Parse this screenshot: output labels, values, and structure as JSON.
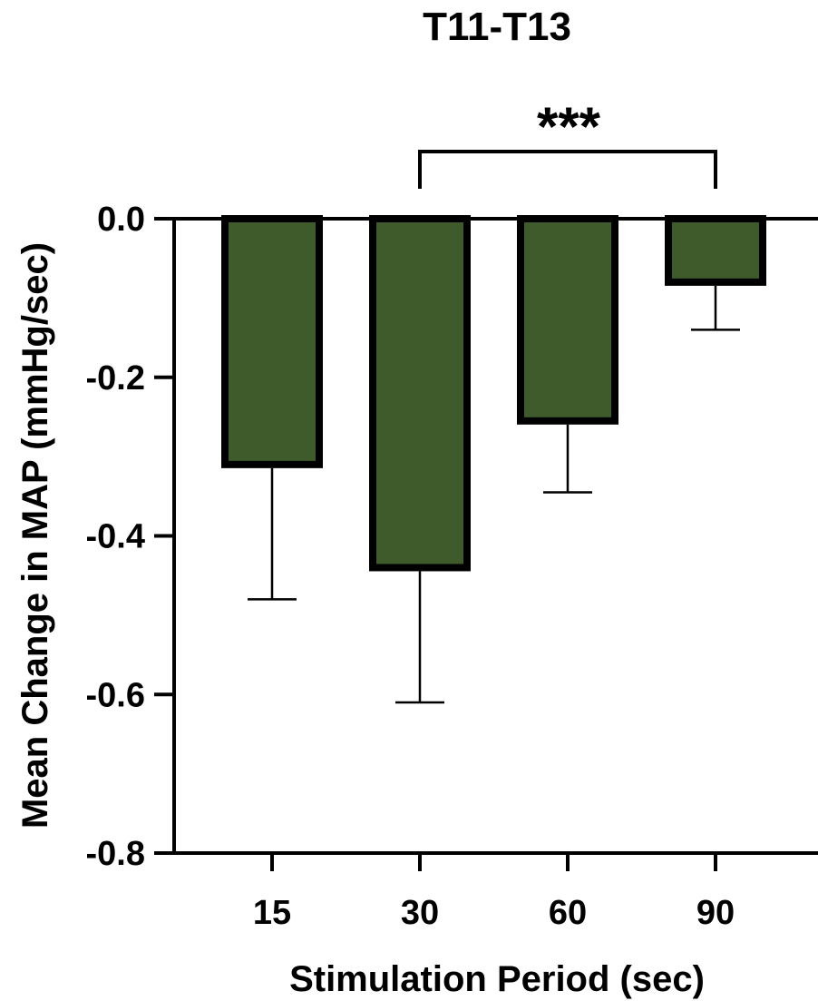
{
  "chart_data": {
    "type": "bar",
    "title": "T11-T13",
    "xlabel": "Stimulation Period (sec)",
    "ylabel": "Mean Change in MAP (mmHg/sec)",
    "categories": [
      "15",
      "30",
      "60",
      "90"
    ],
    "values": [
      -0.31,
      -0.44,
      -0.255,
      -0.08
    ],
    "error_lower": [
      -0.48,
      -0.61,
      -0.345,
      -0.14
    ],
    "ylim": [
      -0.8,
      0.0
    ],
    "yticks": [
      0.0,
      -0.2,
      -0.4,
      -0.6,
      -0.8
    ],
    "ytick_labels": [
      "0.0",
      "-0.2",
      "-0.4",
      "-0.6",
      "-0.8"
    ],
    "bar_color": "#3f5b2c",
    "bar_edge_color": "#000000",
    "grid": false,
    "legend": "none",
    "significance": {
      "from": "30",
      "to": "90",
      "label": "***"
    }
  }
}
